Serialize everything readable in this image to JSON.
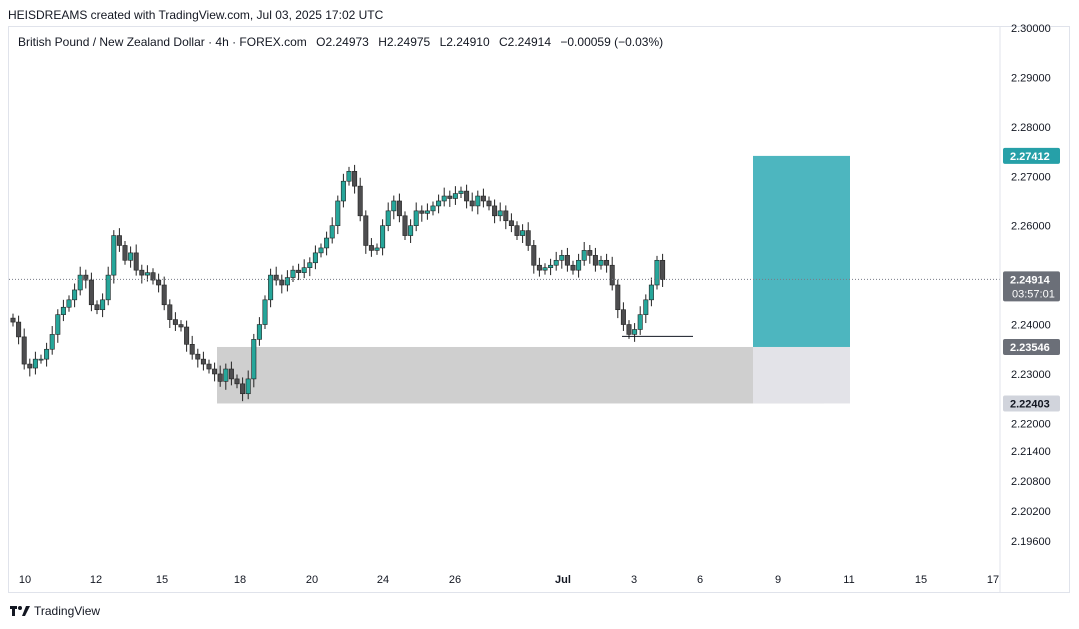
{
  "header": {
    "attribution": "HEISDREAMS created with TradingView.com, Jul 03, 2025 17:02 UTC"
  },
  "legend": {
    "symbol": "British Pound / New Zealand Dollar · 4h · FOREX.com",
    "open": "O2.24973",
    "high": "H2.24975",
    "low": "L2.24910",
    "close": "C2.24914",
    "change": "−0.00059 (−0.03%)"
  },
  "price_axis": {
    "ticks": [
      "2.30000",
      "2.29000",
      "2.28000",
      "2.27000",
      "2.26000",
      "2.25000",
      "2.24000",
      "2.23000",
      "2.22000",
      "2.21400",
      "2.20800",
      "2.20200",
      "2.19600"
    ],
    "last_price": "2.24914",
    "countdown": "03:57:01",
    "target_label": "2.27412",
    "entry_label": "2.23546",
    "stop_label": "2.22403"
  },
  "time_axis": {
    "labels": [
      "10",
      "12",
      "15",
      "18",
      "20",
      "24",
      "26",
      "Jul",
      "3",
      "6",
      "9",
      "11",
      "15",
      "17"
    ]
  },
  "footer": {
    "brand": "TradingView"
  },
  "colors": {
    "bull": "#26a69a",
    "bear": "#4d4d4f",
    "target_zone": "#4db6bf",
    "target_label_bg": "#26a0a8",
    "demand_zone": "#cfcfcf",
    "stop_zone": "#e3e3e8",
    "label_grey": "#6b6f78"
  },
  "chart_data": {
    "type": "candlestick",
    "symbol": "GBPNZD",
    "timeframe": "4h",
    "ylim": [
      2.196,
      2.3
    ],
    "x_labels": [
      "10",
      "12",
      "15",
      "18",
      "20",
      "24",
      "26",
      "Jul",
      "3",
      "6",
      "9",
      "11",
      "15",
      "17"
    ],
    "close_path": [
      2.2405,
      2.2375,
      2.232,
      2.2312,
      2.233,
      2.233,
      2.235,
      2.238,
      2.242,
      2.2435,
      2.245,
      2.247,
      2.25,
      2.249,
      2.244,
      2.243,
      2.245,
      2.25,
      2.258,
      2.256,
      2.253,
      2.2545,
      2.251,
      2.25,
      2.2505,
      2.249,
      2.248,
      2.244,
      2.241,
      2.24,
      2.2395,
      2.236,
      2.234,
      2.233,
      2.232,
      2.231,
      2.23,
      2.2285,
      2.231,
      2.229,
      2.228,
      2.226,
      2.229,
      2.237,
      2.24,
      2.245,
      2.25,
      2.249,
      2.248,
      2.2495,
      2.251,
      2.2505,
      2.2515,
      2.2525,
      2.2545,
      2.2555,
      2.2575,
      2.26,
      2.265,
      2.269,
      2.271,
      2.268,
      2.262,
      2.256,
      2.255,
      2.2555,
      2.26,
      2.263,
      2.265,
      2.262,
      2.258,
      2.26,
      2.263,
      2.2625,
      2.263,
      2.264,
      2.265,
      2.266,
      2.2655,
      2.2665,
      2.267,
      2.265,
      2.264,
      2.266,
      2.265,
      2.264,
      2.262,
      2.263,
      2.261,
      2.26,
      2.258,
      2.259,
      2.256,
      2.252,
      2.251,
      2.2515,
      2.252,
      2.253,
      2.254,
      2.252,
      2.251,
      2.253,
      2.255,
      2.254,
      2.252,
      2.253,
      2.252,
      2.248,
      2.243,
      2.24,
      2.238,
      2.239,
      2.242,
      2.245,
      2.248,
      2.253,
      2.2491
    ],
    "last_price": 2.24914,
    "long_position": {
      "target": 2.27412,
      "entry": 2.23546,
      "stop": 2.22403
    },
    "demand_zone": {
      "top": 2.23546,
      "bottom": 2.22403
    },
    "swing_low_line": 2.2376
  }
}
